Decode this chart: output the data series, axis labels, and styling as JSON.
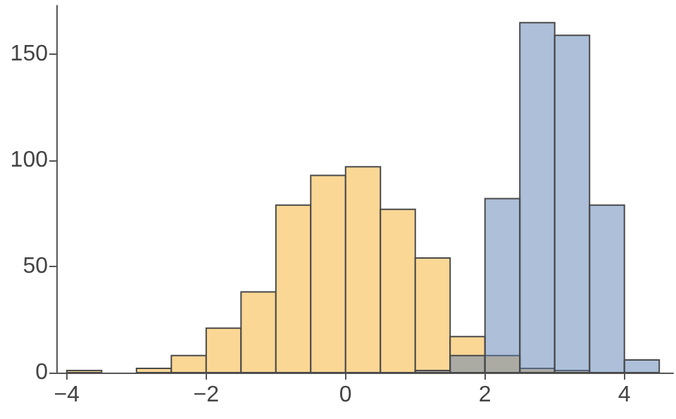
{
  "chart_data": {
    "type": "histogram",
    "bins": [
      -4,
      -3.5,
      -3,
      -2.5,
      -2,
      -1.5,
      -1,
      -0.5,
      0,
      0.5,
      1,
      1.5,
      2,
      2.5,
      3,
      3.5,
      4,
      4.5
    ],
    "series": [
      {
        "color": "#fbd795",
        "values": [
          1,
          0,
          2,
          8,
          21,
          38,
          79,
          93,
          97,
          77,
          54,
          17,
          8,
          2,
          1,
          null,
          null
        ]
      },
      {
        "color": "#adbfd9",
        "values": [
          null,
          null,
          null,
          null,
          null,
          null,
          null,
          null,
          null,
          null,
          1,
          8,
          82,
          165,
          159,
          79,
          6
        ]
      }
    ],
    "xlim": [
      -4.15,
      4.7
    ],
    "xticks": [
      -4,
      -2,
      0,
      2,
      4
    ],
    "ylim": [
      0,
      173
    ],
    "yticks": [
      0,
      50,
      100,
      150
    ],
    "grid": false
  }
}
